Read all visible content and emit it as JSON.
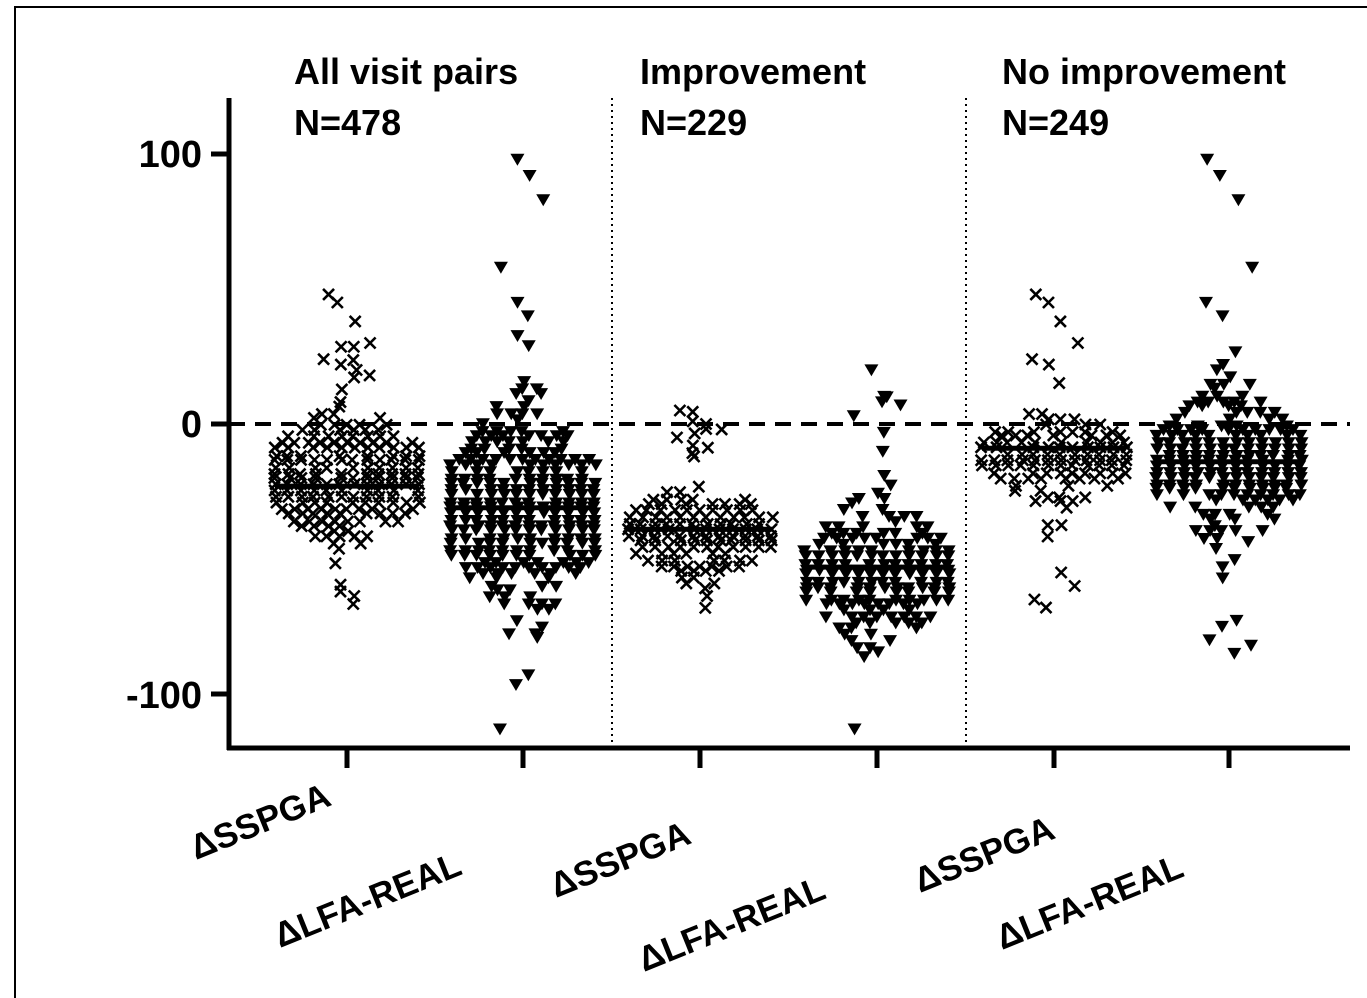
{
  "chart_data": {
    "type": "scatter",
    "subtype": "column-scatter (dot plot) with median lines",
    "panels": [
      {
        "title": "All visit pairs",
        "n_label": "N=478"
      },
      {
        "title": "Improvement",
        "n_label": "N=229"
      },
      {
        "title": "No improvement",
        "n_label": "N=249"
      }
    ],
    "categories": [
      "ΔSSPGA",
      "ΔLFA-REAL",
      "ΔSSPGA",
      "ΔLFA-REAL",
      "ΔSSPGA",
      "ΔLFA-REAL"
    ],
    "y_ticks": [
      "100",
      "0",
      "-100"
    ],
    "ylim": [
      -118,
      120
    ],
    "reference_line_y": 0,
    "series": [
      {
        "panel": 0,
        "category": "ΔSSPGA",
        "marker": "x",
        "median": -23,
        "range": [
          -70,
          48
        ],
        "center": -20,
        "spread": 22,
        "outliers": [
          48,
          45,
          38,
          30,
          24,
          22,
          20,
          18
        ]
      },
      {
        "panel": 0,
        "category": "ΔLFA-REAL",
        "marker": "triangle-down",
        "median": -31,
        "range": [
          -100,
          35
        ],
        "center": -32,
        "spread": 33,
        "outliers": [
          -113,
          98,
          92,
          83,
          58,
          45,
          40
        ]
      },
      {
        "panel": 1,
        "category": "ΔSSPGA",
        "marker": "x",
        "median": -39,
        "range": [
          -70,
          5
        ],
        "center": -40,
        "spread": 14,
        "outliers": [
          5,
          1,
          0,
          -2,
          -5,
          -8
        ]
      },
      {
        "panel": 1,
        "category": "ΔLFA-REAL",
        "marker": "triangle-down",
        "median": -53,
        "range": [
          -100,
          10
        ],
        "center": -55,
        "spread": 22,
        "outliers": [
          -113,
          20,
          10,
          7,
          3
        ]
      },
      {
        "panel": 2,
        "category": "ΔSSPGA",
        "marker": "x",
        "median": -9,
        "range": [
          -45,
          15
        ],
        "center": -12,
        "spread": 14,
        "outliers": [
          48,
          45,
          38,
          30,
          24,
          22,
          -55,
          -60,
          -65,
          -68
        ]
      },
      {
        "panel": 2,
        "category": "ΔLFA-REAL",
        "marker": "triangle-down",
        "median": -14,
        "range": [
          -80,
          35
        ],
        "center": -15,
        "spread": 24,
        "outliers": [
          98,
          92,
          83,
          58,
          45,
          40,
          -85,
          -82,
          -80,
          -75
        ]
      }
    ],
    "colors": {
      "markers": "#000000",
      "axes": "#000000",
      "background": "#ffffff"
    }
  }
}
